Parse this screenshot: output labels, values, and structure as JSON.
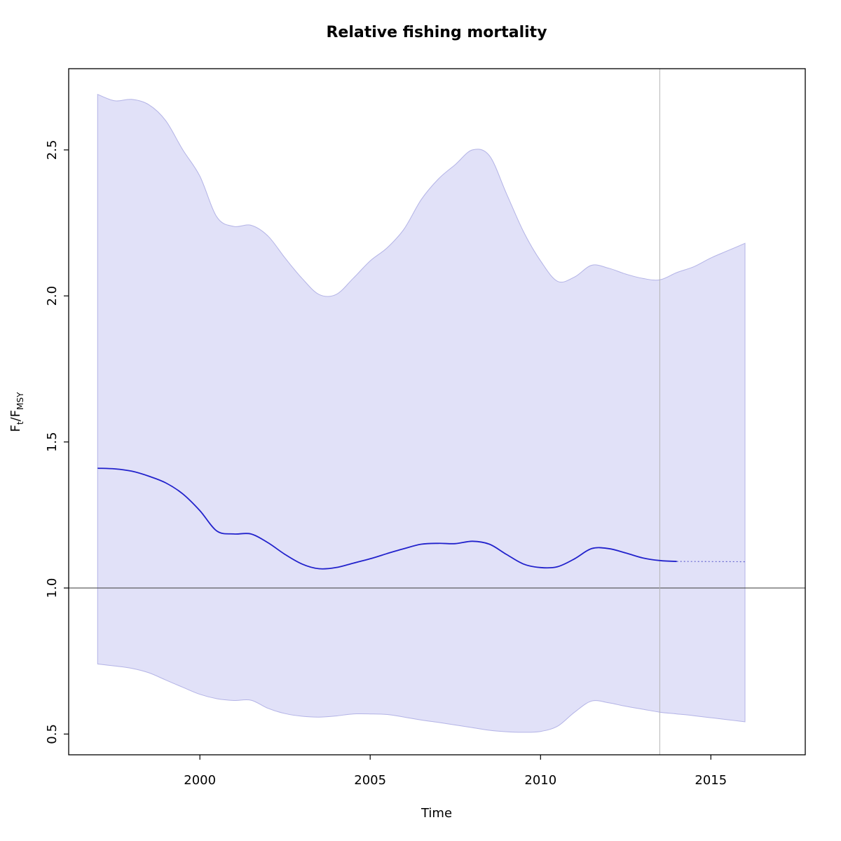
{
  "chart_data": {
    "type": "area",
    "title": "Relative fishing mortality",
    "xlabel": "Time",
    "ylabel": {
      "f1": "F",
      "s1": "t",
      "f2": "/F",
      "s2": "MSY"
    },
    "xlim": [
      1996.15,
      2017.77
    ],
    "ylim": [
      0.429,
      2.778
    ],
    "xticks": [
      {
        "value": 2000,
        "label": "2000"
      },
      {
        "value": 2005,
        "label": "2005"
      },
      {
        "value": 2010,
        "label": "2010"
      },
      {
        "value": 2015,
        "label": "2015"
      }
    ],
    "yticks": [
      {
        "value": 0.5,
        "label": "0.5"
      },
      {
        "value": 1.0,
        "label": "1.0"
      },
      {
        "value": 1.5,
        "label": "1.5"
      },
      {
        "value": 2.0,
        "label": "2.0"
      },
      {
        "value": 2.5,
        "label": "2.5"
      }
    ],
    "reference_line_y": 1.0,
    "vline_x": 2013.5,
    "x": [
      1997,
      1997.5,
      1998,
      1998.5,
      1999,
      1999.5,
      2000,
      2000.5,
      2001,
      2001.5,
      2002,
      2002.5,
      2003,
      2003.5,
      2004,
      2004.5,
      2005,
      2005.5,
      2006,
      2006.5,
      2007,
      2007.5,
      2008,
      2008.5,
      2009,
      2009.5,
      2010,
      2010.5,
      2011,
      2011.5,
      2012,
      2012.5,
      2013,
      2013.5,
      2014,
      2014.5,
      2015,
      2015.5,
      2016
    ],
    "series": [
      {
        "name": "upper-95-ci",
        "values": [
          2.69,
          2.668,
          2.673,
          2.655,
          2.6,
          2.5,
          2.41,
          2.27,
          2.238,
          2.242,
          2.205,
          2.13,
          2.06,
          2.005,
          2.005,
          2.06,
          2.12,
          2.165,
          2.23,
          2.33,
          2.4,
          2.45,
          2.5,
          2.48,
          2.35,
          2.22,
          2.12,
          2.05,
          2.065,
          2.105,
          2.095,
          2.075,
          2.06,
          2.055,
          2.08,
          2.1,
          2.13,
          2.155,
          2.18
        ]
      },
      {
        "name": "lower-95-ci",
        "values": [
          0.74,
          0.733,
          0.725,
          0.71,
          0.685,
          0.66,
          0.636,
          0.621,
          0.615,
          0.616,
          0.588,
          0.57,
          0.561,
          0.558,
          0.562,
          0.569,
          0.569,
          0.567,
          0.558,
          0.548,
          0.54,
          0.531,
          0.522,
          0.513,
          0.508,
          0.506,
          0.509,
          0.527,
          0.575,
          0.613,
          0.607,
          0.595,
          0.585,
          0.575,
          0.569,
          0.563,
          0.556,
          0.549,
          0.542
        ]
      },
      {
        "name": "median",
        "x": [
          1997,
          1997.5,
          1998,
          1998.5,
          1999,
          1999.5,
          2000,
          2000.5,
          2001,
          2001.5,
          2002,
          2002.5,
          2003,
          2003.5,
          2004,
          2004.5,
          2005,
          2005.5,
          2006,
          2006.5,
          2007,
          2007.5,
          2008,
          2008.5,
          2009,
          2009.5,
          2010,
          2010.5,
          2011,
          2011.5,
          2012,
          2012.5,
          2013,
          2013.5,
          2014
        ],
        "values": [
          1.41,
          1.408,
          1.4,
          1.383,
          1.36,
          1.322,
          1.265,
          1.195,
          1.185,
          1.185,
          1.155,
          1.115,
          1.082,
          1.066,
          1.07,
          1.085,
          1.1,
          1.118,
          1.135,
          1.15,
          1.153,
          1.152,
          1.16,
          1.15,
          1.115,
          1.082,
          1.07,
          1.073,
          1.1,
          1.135,
          1.135,
          1.12,
          1.103,
          1.094,
          1.091
        ]
      },
      {
        "name": "median-forecast",
        "x": [
          2014,
          2016
        ],
        "values": [
          1.091,
          1.09
        ],
        "style": "dotted"
      }
    ],
    "colors": {
      "band_fill": "#e1e1f8",
      "band_edge": "#b3b3e6",
      "median": "#2222cc",
      "forecast": "#6666cf",
      "reference": "#3a3a3a",
      "vline": "#b5b5b5",
      "axis": "#000000"
    },
    "legend": null,
    "grid": "off"
  }
}
